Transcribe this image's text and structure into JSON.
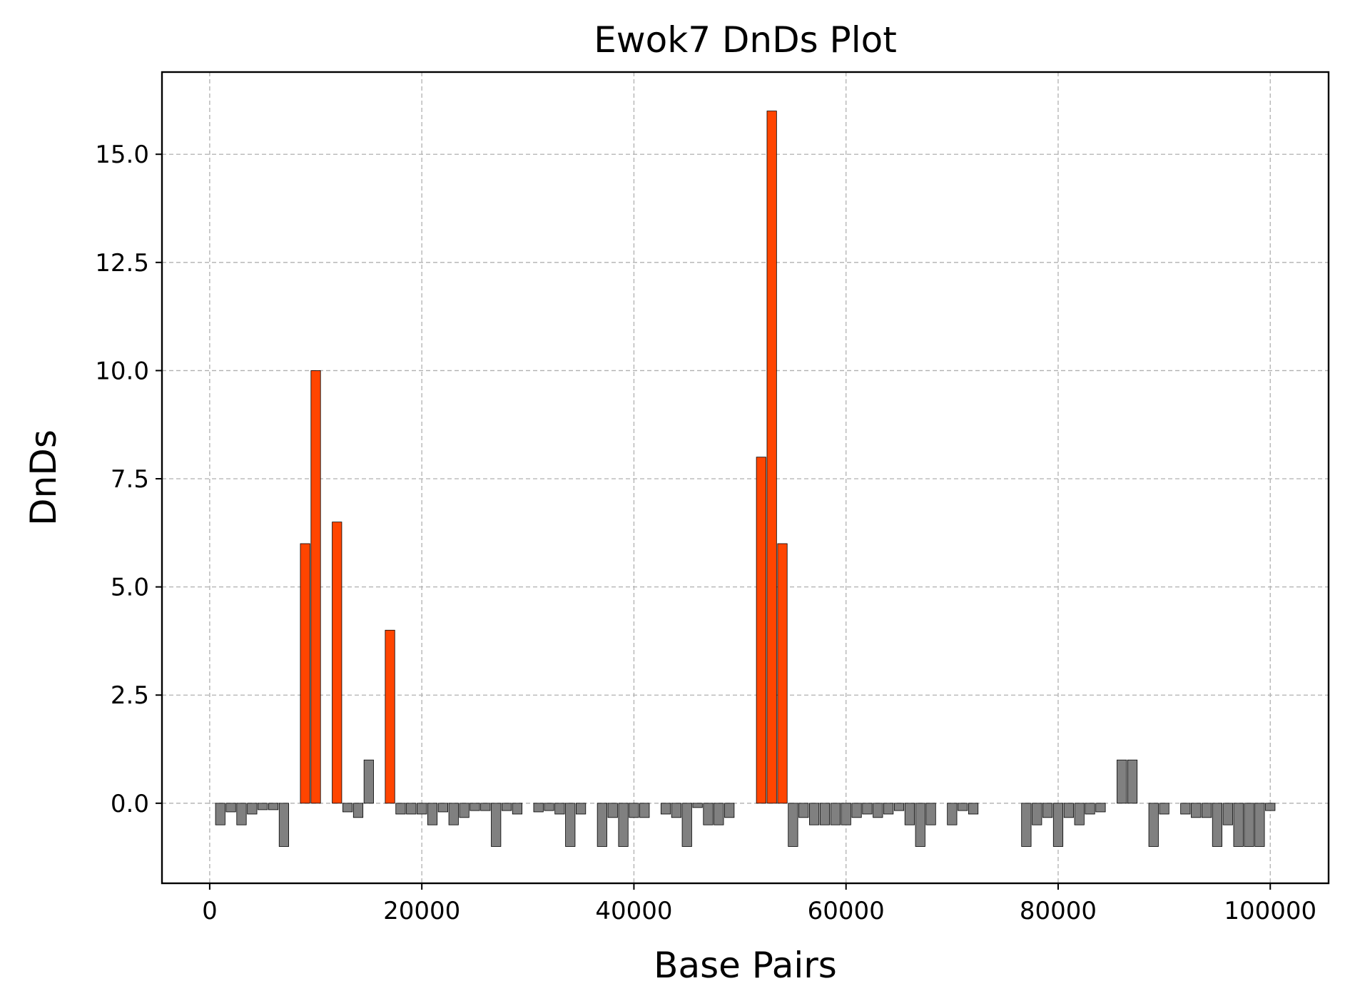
{
  "chart_data": {
    "type": "bar",
    "title": "Ewok7 DnDs Plot",
    "xlabel": "Base Pairs",
    "ylabel": "DnDs",
    "xlim": [
      -4500,
      105500
    ],
    "ylim": [
      -1.85,
      16.9
    ],
    "xticks": [
      0,
      20000,
      40000,
      60000,
      80000,
      100000
    ],
    "xtick_labels": [
      "0",
      "20000",
      "40000",
      "60000",
      "80000",
      "100000"
    ],
    "yticks": [
      0,
      2.5,
      5,
      7.5,
      10,
      12.5,
      15
    ],
    "ytick_labels": [
      "0.0",
      "2.5",
      "5.0",
      "7.5",
      "10.0",
      "12.5",
      "15.0"
    ],
    "grid": true,
    "bar_width": 900,
    "colors": {
      "high": "#FF4500",
      "low": "#808080",
      "edge": "#000000"
    },
    "highlight_threshold": 1.0,
    "x": [
      1000,
      2000,
      3000,
      4000,
      5000,
      6000,
      7000,
      9000,
      10000,
      12000,
      13000,
      14000,
      15000,
      17000,
      18000,
      19000,
      20000,
      21000,
      22000,
      23000,
      24000,
      25000,
      26000,
      27000,
      28000,
      29000,
      31000,
      32000,
      33000,
      34000,
      35000,
      37000,
      38000,
      39000,
      40000,
      41000,
      43000,
      44000,
      45000,
      46000,
      47000,
      48000,
      49000,
      52000,
      53000,
      54000,
      55000,
      56000,
      57000,
      58000,
      59000,
      60000,
      61000,
      62000,
      63000,
      64000,
      65000,
      66000,
      67000,
      68000,
      70000,
      71000,
      72000,
      77000,
      78000,
      79000,
      80000,
      81000,
      82000,
      83000,
      84000,
      86000,
      87000,
      89000,
      90000,
      92000,
      93000,
      94000,
      95000,
      96000,
      97000,
      98000,
      99000,
      100000
    ],
    "values": [
      -0.5,
      -0.2,
      -0.5,
      -0.25,
      -0.15,
      -0.15,
      -1.0,
      6.0,
      10.0,
      6.5,
      -0.2,
      -0.33,
      1.0,
      4.0,
      -0.25,
      -0.25,
      -0.25,
      -0.5,
      -0.2,
      -0.5,
      -0.33,
      -0.17,
      -0.17,
      -1.0,
      -0.17,
      -0.25,
      -0.2,
      -0.17,
      -0.25,
      -1.0,
      -0.25,
      -1.0,
      -0.33,
      -1.0,
      -0.33,
      -0.33,
      -0.25,
      -0.33,
      -1.0,
      -0.1,
      -0.5,
      -0.5,
      -0.33,
      8.0,
      16.0,
      6.0,
      -1.0,
      -0.33,
      -0.5,
      -0.5,
      -0.5,
      -0.5,
      -0.33,
      -0.25,
      -0.33,
      -0.25,
      -0.17,
      -0.5,
      -1.0,
      -0.5,
      -0.5,
      -0.17,
      -0.25,
      -1.0,
      -0.5,
      -0.33,
      -1.0,
      -0.33,
      -0.5,
      -0.25,
      -0.2,
      1.0,
      1.0,
      -1.0,
      -0.25,
      -0.25,
      -0.33,
      -0.33,
      -1.0,
      -0.5,
      -1.0,
      -1.0,
      -1.0,
      -0.17
    ]
  }
}
